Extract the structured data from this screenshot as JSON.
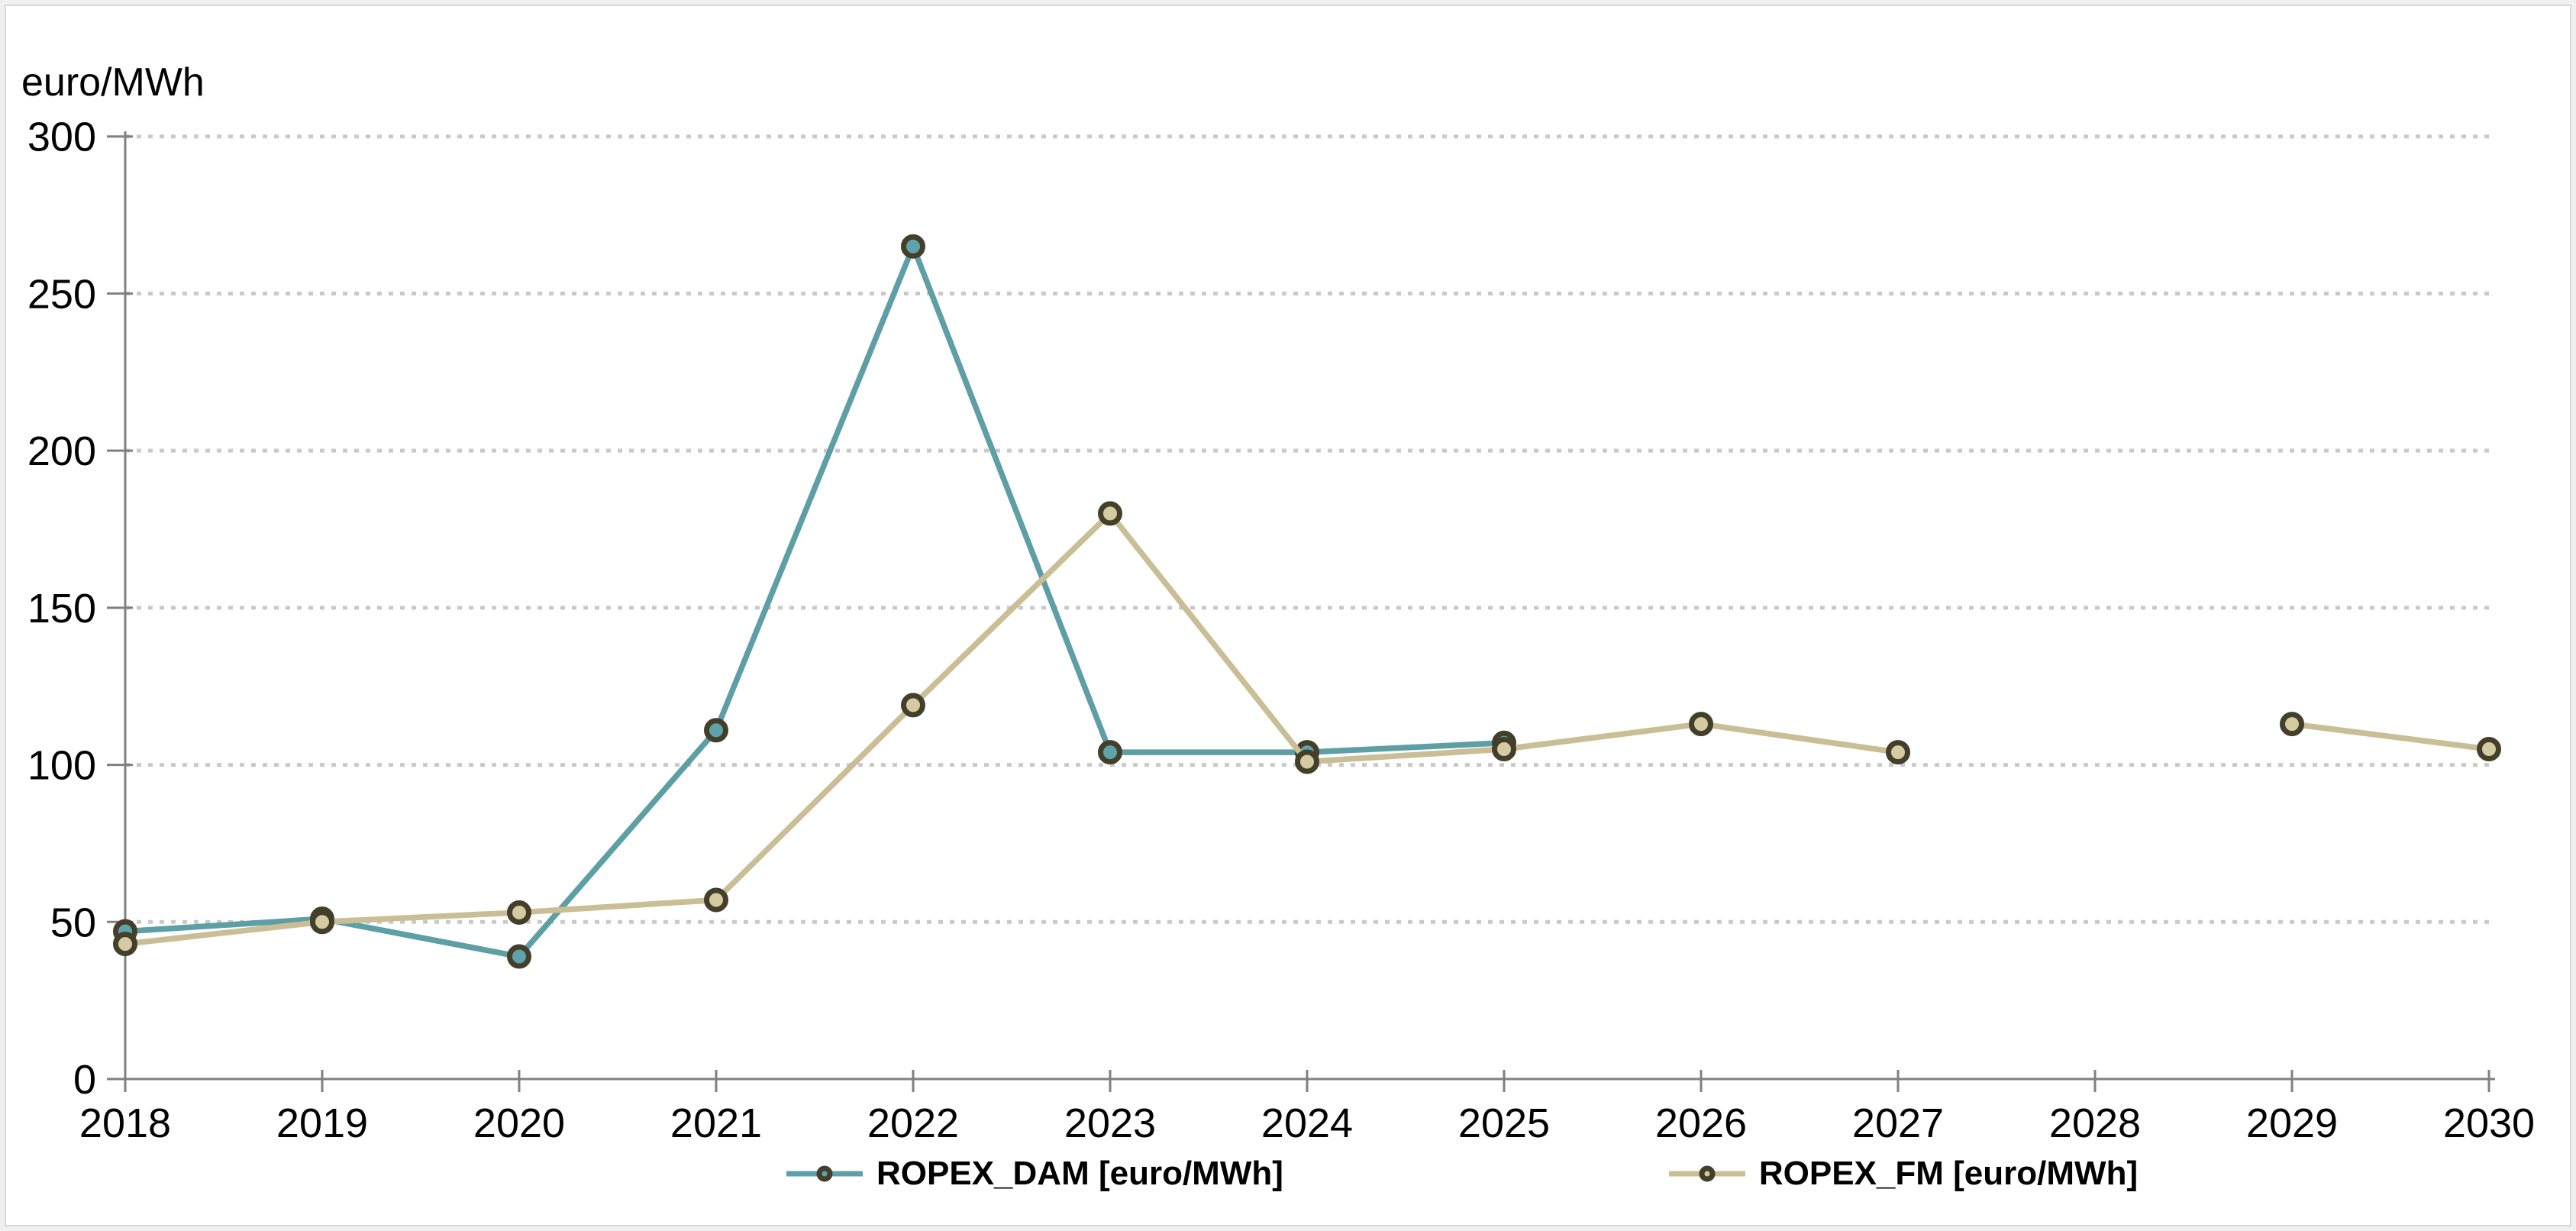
{
  "y_axis_title": "euro/MWh",
  "colors": {
    "page_background": "#f0f0f0",
    "panel_background": "#ffffff",
    "panel_border": "#d9d9d9",
    "axis": "#808080",
    "gridline": "#c9c9c9",
    "text": "#000000",
    "marker_outline": "#443f2b"
  },
  "chart_data": {
    "type": "line",
    "title": "",
    "ylabel": "euro/MWh",
    "xlabel": "",
    "x_categories": [
      "2018",
      "2019",
      "2020",
      "2021",
      "2022",
      "2023",
      "2024",
      "2025",
      "2026",
      "2027",
      "2028",
      "2029",
      "2030"
    ],
    "y_ticks": [
      0,
      50,
      100,
      150,
      200,
      250,
      300
    ],
    "ylim": [
      0,
      300
    ],
    "grid": "horizontal-dotted",
    "legend_position": "bottom-center",
    "series": [
      {
        "key": "ropex-dam",
        "name": "ROPEX_DAM [euro/MWh]",
        "color": "#5e9fa6",
        "marker_fill": "#5fa3aa",
        "marker_stroke": "#443f2b",
        "values": [
          47,
          51,
          39,
          111,
          265,
          104,
          104,
          107,
          null,
          null,
          null,
          null,
          null
        ]
      },
      {
        "key": "ropex-fm",
        "name": "ROPEX_FM [euro/MWh]",
        "color": "#c9be95",
        "marker_fill": "#d5cba3",
        "marker_stroke": "#443f2b",
        "values": [
          43,
          50,
          53,
          57,
          119,
          180,
          101,
          105,
          113,
          104,
          null,
          113,
          105
        ]
      }
    ]
  }
}
